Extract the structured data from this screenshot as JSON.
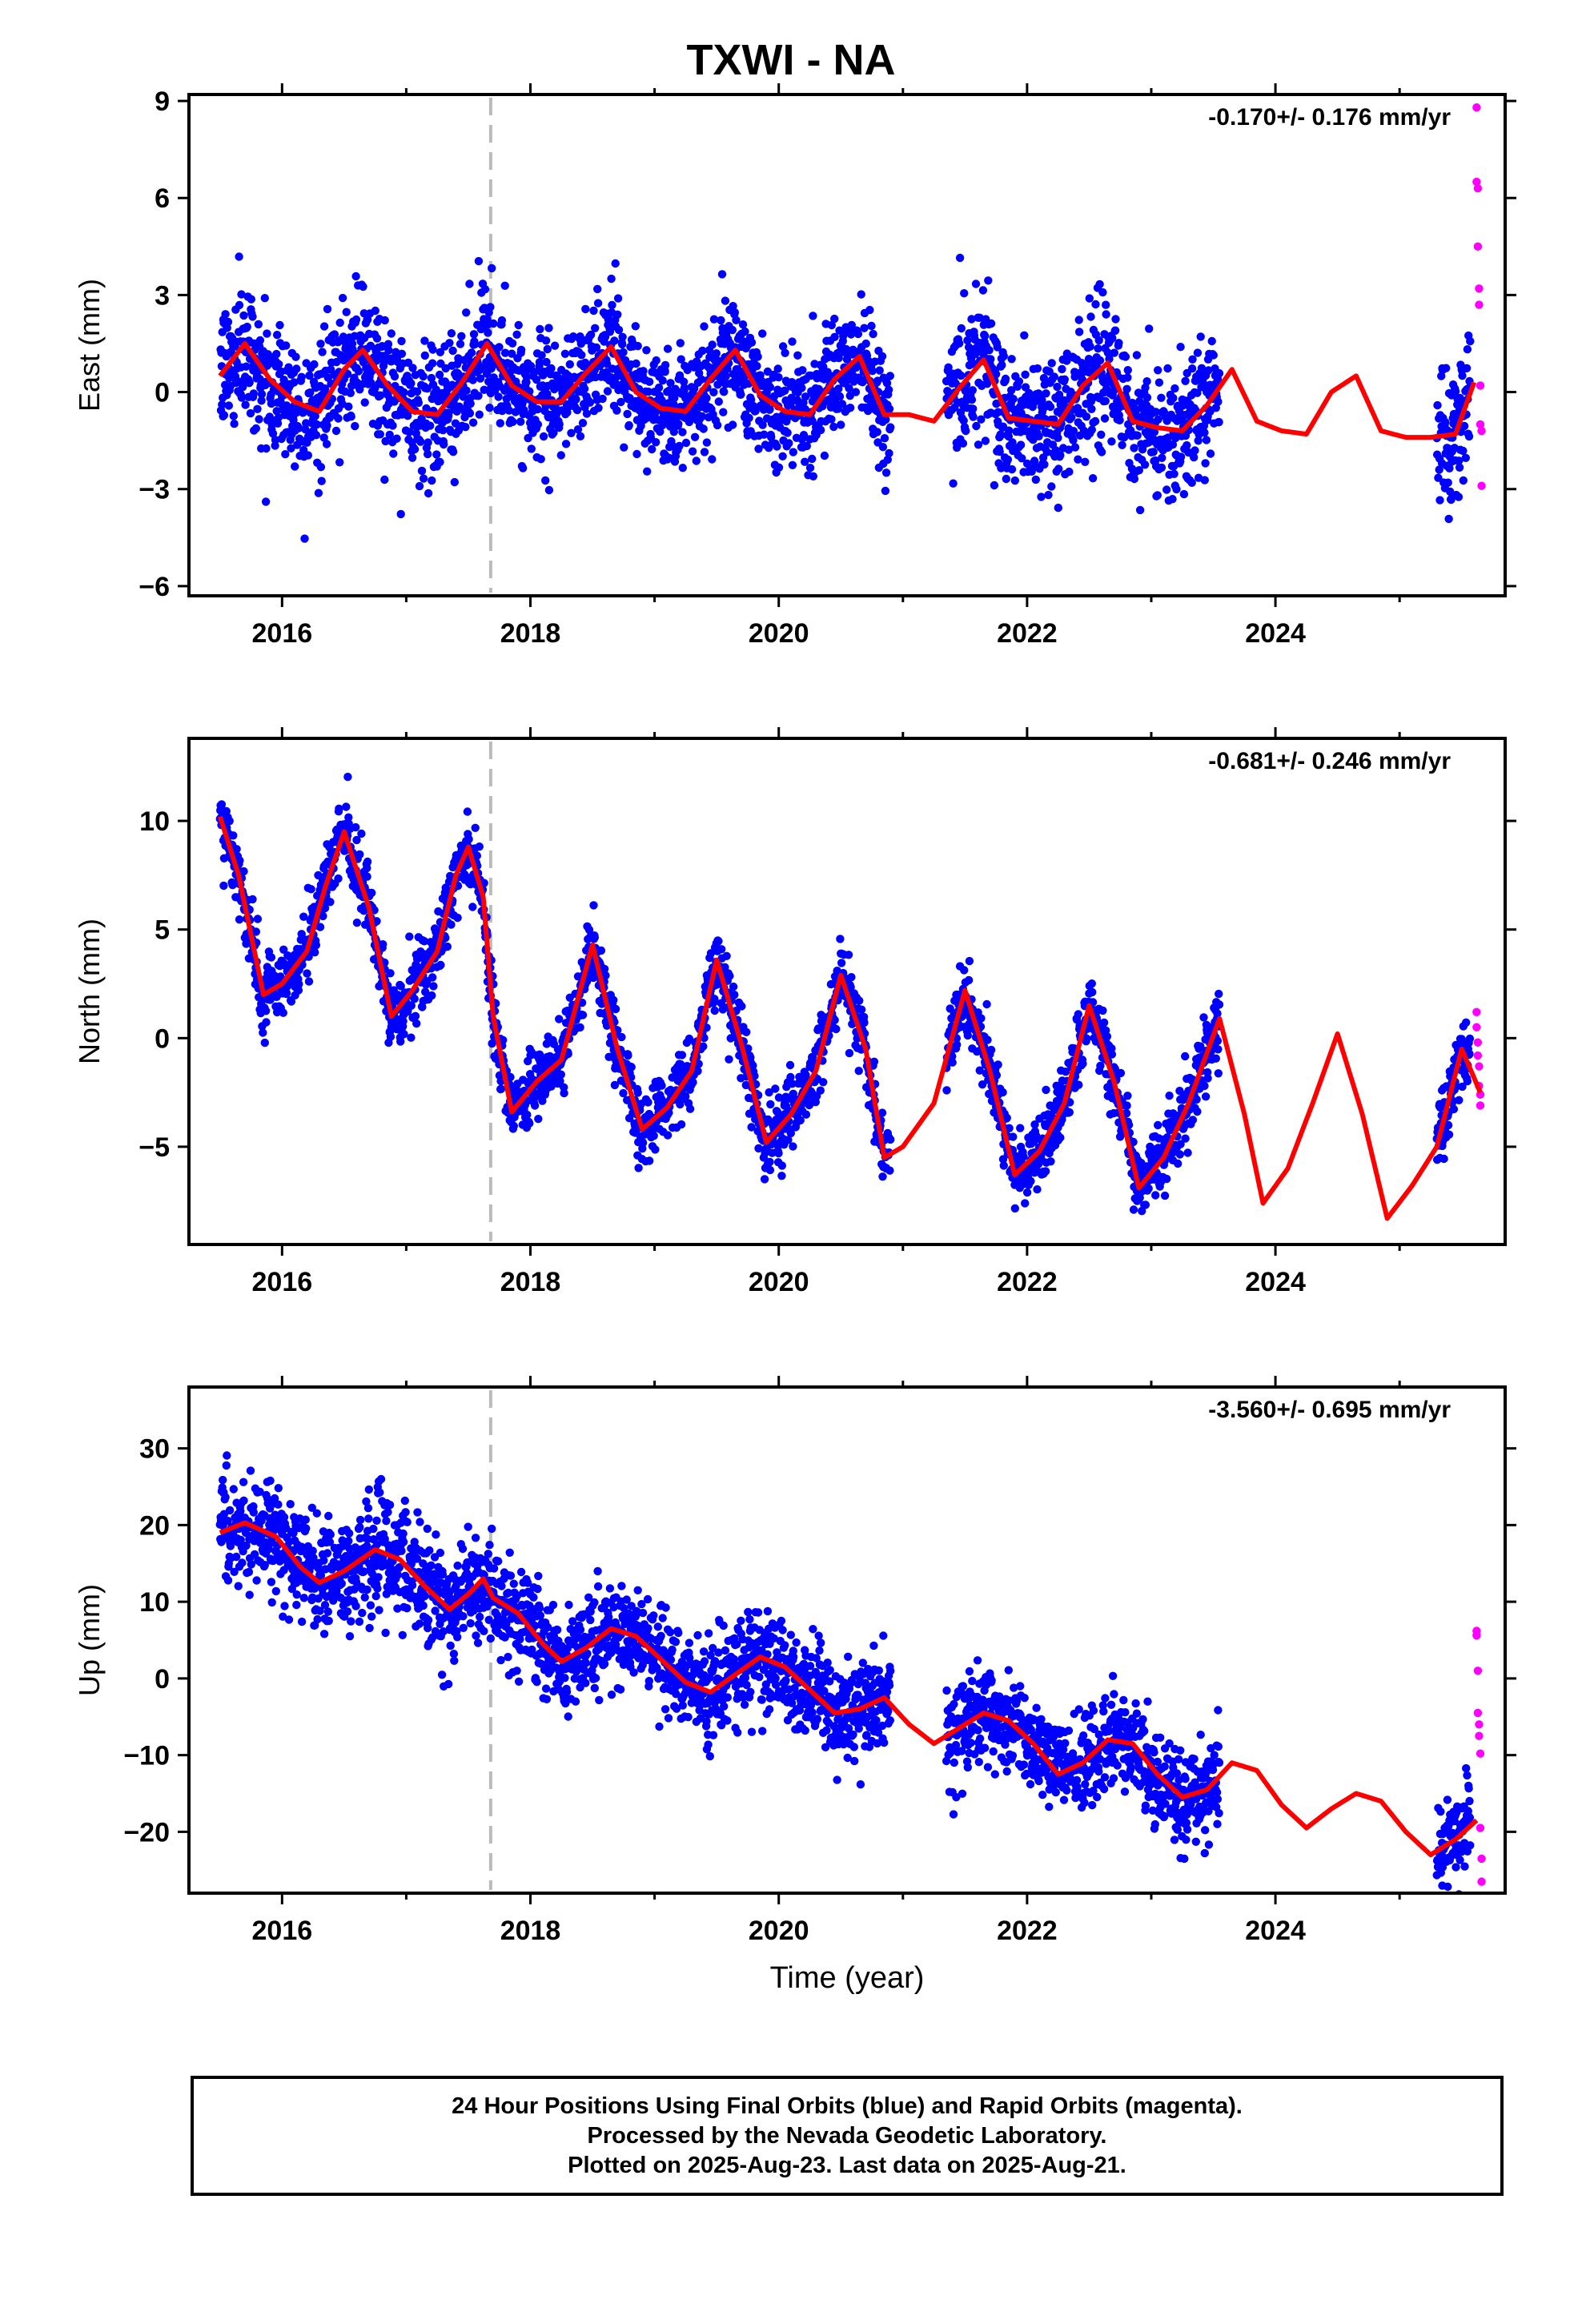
{
  "title": "TXWI - NA",
  "footer": {
    "line1": "24 Hour Positions Using Final Orbits (blue) and Rapid Orbits (magenta).",
    "line2": "Processed by the Nevada Geodetic Laboratory.",
    "line3": "Plotted on 2025-Aug-23. Last data on 2025-Aug-21."
  },
  "colors": {
    "final_orbits": "#0000ff",
    "rapid_orbits": "#ff00ff",
    "model": "#ff0000",
    "event_line": "#bbbbbb"
  },
  "chart_data": [
    {
      "type": "scatter",
      "name": "east",
      "ylabel": "East (mm)",
      "xlabel": "",
      "rate_label": "-0.170+/- 0.176 mm/yr",
      "xlim": [
        2015.25,
        2025.85
      ],
      "ylim": [
        -6.3,
        9.2
      ],
      "x_ticks": [
        2016,
        2018,
        2020,
        2022,
        2024
      ],
      "y_ticks": [
        -6,
        -3,
        0,
        3,
        6,
        9
      ],
      "y_tick_labels": [
        "−6",
        "−3",
        "0",
        "3",
        "6",
        "9"
      ],
      "event_line_x": 2017.68,
      "model_curve": {
        "x": [
          2015.5,
          2015.7,
          2015.9,
          2016.1,
          2016.3,
          2016.5,
          2016.65,
          2016.85,
          2017.05,
          2017.25,
          2017.45,
          2017.65,
          2017.85,
          2018.05,
          2018.25,
          2018.45,
          2018.65,
          2018.85,
          2019.05,
          2019.25,
          2019.45,
          2019.65,
          2019.85,
          2020.05,
          2020.25,
          2020.45,
          2020.65,
          2020.85,
          2021.05,
          2021.25,
          2021.45,
          2021.65,
          2021.85,
          2022.05,
          2022.25,
          2022.45,
          2022.65,
          2022.85,
          2023.05,
          2023.25,
          2023.45,
          2023.65,
          2023.85,
          2024.05,
          2024.25,
          2024.45,
          2024.65,
          2024.85,
          2025.05,
          2025.25,
          2025.45,
          2025.6
        ],
        "y": [
          0.5,
          1.5,
          0.4,
          -0.3,
          -0.6,
          0.7,
          1.3,
          0.2,
          -0.6,
          -0.7,
          0.3,
          1.5,
          0.2,
          -0.3,
          -0.3,
          0.6,
          1.4,
          0.0,
          -0.5,
          -0.6,
          0.4,
          1.3,
          -0.1,
          -0.6,
          -0.7,
          0.4,
          1.1,
          -0.7,
          -0.7,
          -0.9,
          0.1,
          1.0,
          -0.8,
          -0.9,
          -1.0,
          0.2,
          0.9,
          -0.9,
          -1.1,
          -1.2,
          -0.4,
          0.7,
          -0.9,
          -1.2,
          -1.3,
          0.0,
          0.5,
          -1.2,
          -1.4,
          -1.4,
          -1.3,
          0.3
        ]
      },
      "final_segments": [
        {
          "x": [
            2015.5,
            2017.68
          ],
          "curve": "model",
          "spread": 1.4
        },
        {
          "x": [
            2017.68,
            2020.9
          ],
          "curve": "model",
          "spread": 1.3
        },
        {
          "x": [
            2021.35,
            2023.55
          ],
          "curve": "model",
          "spread": 1.5
        },
        {
          "x": [
            2025.3,
            2025.57
          ],
          "curve": "model",
          "spread": 1.5
        }
      ],
      "rapid_points": {
        "x": [
          2025.62,
          2025.62,
          2025.63,
          2025.63,
          2025.64,
          2025.64,
          2025.65,
          2025.65,
          2025.66,
          2025.66
        ],
        "y": [
          8.8,
          6.5,
          6.3,
          4.5,
          3.2,
          2.7,
          0.2,
          -1.0,
          -1.2,
          -2.9
        ]
      }
    },
    {
      "type": "scatter",
      "name": "north",
      "ylabel": "North (mm)",
      "xlabel": "",
      "rate_label": "-0.681+/- 0.246 mm/yr",
      "xlim": [
        2015.25,
        2025.85
      ],
      "ylim": [
        -9.5,
        13.8
      ],
      "x_ticks": [
        2016,
        2018,
        2020,
        2022,
        2024
      ],
      "y_ticks": [
        -5,
        0,
        5,
        10
      ],
      "y_tick_labels": [
        "−5",
        "0",
        "5",
        "10"
      ],
      "event_line_x": 2017.68,
      "model_curve": {
        "x": [
          2015.5,
          2015.65,
          2015.85,
          2016.0,
          2016.2,
          2016.35,
          2016.5,
          2016.7,
          2016.88,
          2017.05,
          2017.25,
          2017.4,
          2017.5,
          2017.62,
          2017.7,
          2017.85,
          2018.05,
          2018.25,
          2018.5,
          2018.7,
          2018.9,
          2019.1,
          2019.3,
          2019.5,
          2019.7,
          2019.9,
          2020.1,
          2020.3,
          2020.5,
          2020.7,
          2020.85,
          2021.0,
          2021.25,
          2021.5,
          2021.7,
          2021.9,
          2022.1,
          2022.3,
          2022.5,
          2022.7,
          2022.9,
          2023.1,
          2023.3,
          2023.55,
          2023.75,
          2023.9,
          2024.1,
          2024.3,
          2024.5,
          2024.7,
          2024.9,
          2025.1,
          2025.3,
          2025.5,
          2025.65
        ],
        "y": [
          10.2,
          7.5,
          2.0,
          2.5,
          4.0,
          7.0,
          9.5,
          6.0,
          1.0,
          2.2,
          4.0,
          7.5,
          8.8,
          6.5,
          1.0,
          -3.4,
          -2.0,
          -1.0,
          4.3,
          -0.5,
          -4.2,
          -3.2,
          -1.5,
          3.6,
          -0.3,
          -4.8,
          -3.5,
          -1.5,
          2.9,
          -0.5,
          -5.5,
          -5.0,
          -3.0,
          2.2,
          -1.5,
          -6.3,
          -5.2,
          -3.0,
          1.5,
          -2.0,
          -6.9,
          -5.5,
          -3.0,
          0.9,
          -3.5,
          -7.6,
          -6.0,
          -3.0,
          0.2,
          -3.5,
          -8.3,
          -6.8,
          -5.0,
          -0.5,
          -2.5
        ]
      },
      "final_segments": [
        {
          "x": [
            2015.5,
            2017.68
          ],
          "curve": "model",
          "spread": 1.2
        },
        {
          "x": [
            2017.68,
            2020.9
          ],
          "curve": "model",
          "spread": 1.1
        },
        {
          "x": [
            2021.35,
            2023.55
          ],
          "curve": "model",
          "spread": 1.1
        },
        {
          "x": [
            2025.3,
            2025.57
          ],
          "curve": "model",
          "spread": 1.2
        }
      ],
      "rapid_points": {
        "x": [
          2025.62,
          2025.62,
          2025.63,
          2025.63,
          2025.64,
          2025.64,
          2025.65,
          2025.65
        ],
        "y": [
          1.2,
          0.5,
          -0.2,
          -0.8,
          -1.3,
          -2.2,
          -2.6,
          -3.1
        ]
      }
    },
    {
      "type": "scatter",
      "name": "up",
      "ylabel": "Up (mm)",
      "xlabel": "Time (year)",
      "rate_label": "-3.560+/- 0.695 mm/yr",
      "xlim": [
        2015.25,
        2025.85
      ],
      "ylim": [
        -28,
        38
      ],
      "x_ticks": [
        2016,
        2018,
        2020,
        2022,
        2024
      ],
      "x_tick_labels": [
        "2016",
        "2018",
        "2020",
        "2022",
        "2024"
      ],
      "y_ticks": [
        -20,
        -10,
        0,
        10,
        20,
        30
      ],
      "y_tick_labels": [
        "−20",
        "−10",
        "0",
        "10",
        "20",
        "30"
      ],
      "event_line_x": 2017.68,
      "model_curve": {
        "x": [
          2015.5,
          2015.7,
          2015.95,
          2016.15,
          2016.3,
          2016.5,
          2016.75,
          2016.95,
          2017.15,
          2017.35,
          2017.5,
          2017.62,
          2017.7,
          2017.9,
          2018.1,
          2018.25,
          2018.45,
          2018.65,
          2018.85,
          2019.05,
          2019.25,
          2019.45,
          2019.65,
          2019.85,
          2020.05,
          2020.25,
          2020.45,
          2020.65,
          2020.85,
          2021.05,
          2021.25,
          2021.45,
          2021.65,
          2021.85,
          2022.05,
          2022.25,
          2022.45,
          2022.65,
          2022.85,
          2023.05,
          2023.25,
          2023.45,
          2023.65,
          2023.85,
          2024.05,
          2024.25,
          2024.45,
          2024.65,
          2024.85,
          2025.05,
          2025.25,
          2025.45,
          2025.62
        ],
        "y": [
          19.0,
          20.3,
          18.5,
          14.5,
          12.5,
          14.0,
          16.8,
          15.5,
          12.0,
          9.0,
          11.0,
          13.0,
          10.5,
          8.5,
          4.5,
          2.2,
          4.0,
          6.5,
          5.5,
          2.5,
          -0.5,
          -1.8,
          0.5,
          2.8,
          1.5,
          -1.5,
          -4.5,
          -4.0,
          -2.5,
          -6.0,
          -8.5,
          -6.5,
          -4.5,
          -5.5,
          -8.5,
          -12.5,
          -11.0,
          -8.0,
          -8.5,
          -12.5,
          -15.5,
          -14.5,
          -11.0,
          -12.0,
          -16.5,
          -19.5,
          -17.0,
          -15.0,
          -16.0,
          -20.0,
          -23.0,
          -21.0,
          -18.5
        ]
      },
      "final_segments": [
        {
          "x": [
            2015.5,
            2017.68
          ],
          "curve": "model",
          "spread": 5.0
        },
        {
          "x": [
            2017.68,
            2020.9
          ],
          "curve": "model",
          "spread": 4.5
        },
        {
          "x": [
            2021.35,
            2023.55
          ],
          "curve": "model",
          "spread": 4.5
        },
        {
          "x": [
            2025.3,
            2025.57
          ],
          "curve": "model",
          "spread": 4.5
        }
      ],
      "rapid_points": {
        "x": [
          2025.62,
          2025.62,
          2025.63,
          2025.63,
          2025.64,
          2025.64,
          2025.65,
          2025.65,
          2025.66,
          2025.66
        ],
        "y": [
          6.2,
          5.6,
          1.0,
          -4.5,
          -6.0,
          -7.5,
          -9.8,
          -19.5,
          -23.5,
          -26.5
        ]
      }
    }
  ]
}
